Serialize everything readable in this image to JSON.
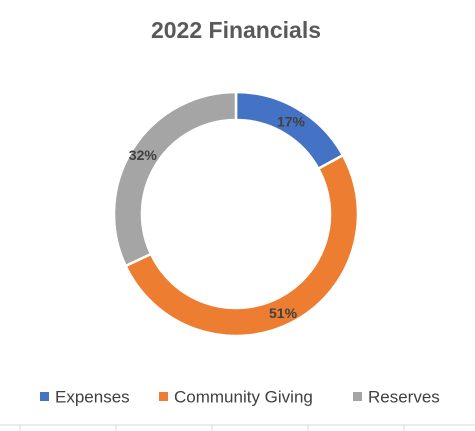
{
  "chart_data": {
    "type": "pie",
    "variant": "doughnut",
    "title": "2022 Financials",
    "categories": [
      "Expenses",
      "Community Giving",
      "Reserves"
    ],
    "values": [
      17,
      51,
      32
    ],
    "data_labels": [
      "17%",
      "51%",
      "32%"
    ],
    "colors": [
      "#4472c4",
      "#ed7d31",
      "#a5a5a5"
    ],
    "legend_position": "bottom",
    "grid": false
  }
}
